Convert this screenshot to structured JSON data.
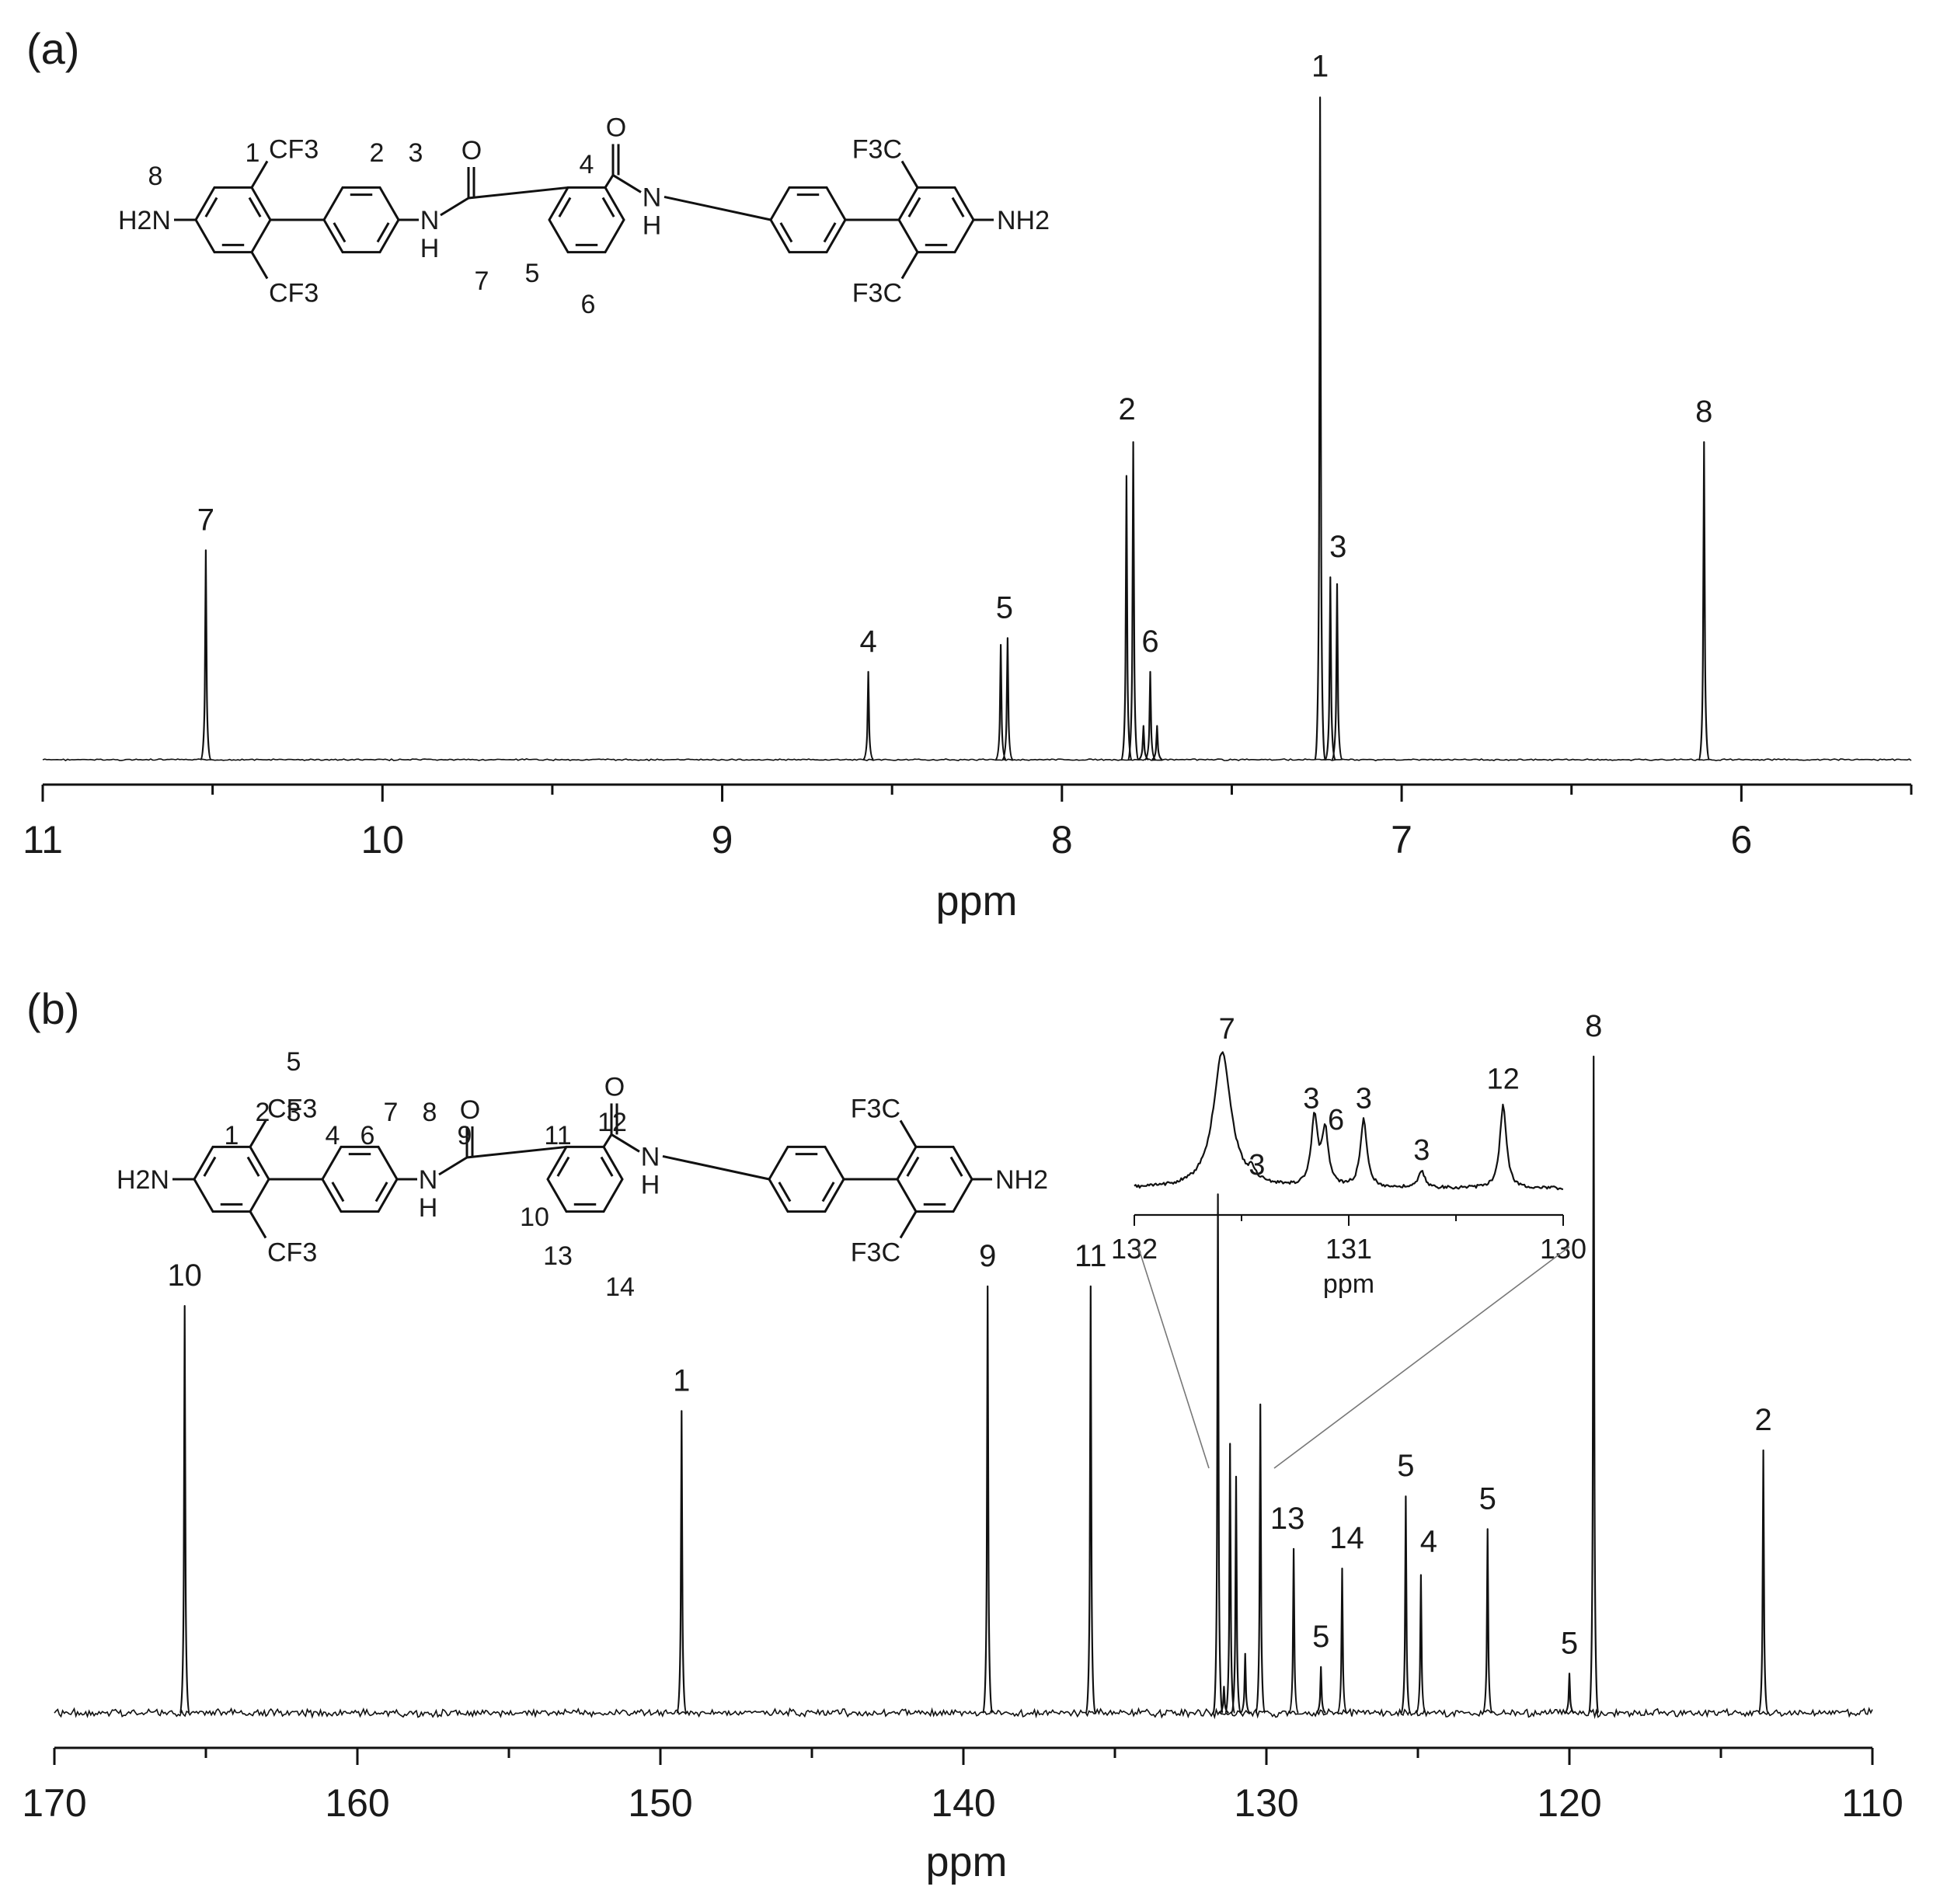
{
  "colors": {
    "line": "#111111",
    "background": "#ffffff"
  },
  "chart_data": [
    {
      "panel": "(a)",
      "type": "line",
      "xlabel": "ppm",
      "ylabel": "",
      "xlim": [
        11,
        5.5
      ],
      "x_reversed": true,
      "xticks": [
        11,
        10,
        9,
        8,
        7,
        6
      ],
      "xtick_labels": [
        "11",
        "10",
        "9",
        "8",
        "7",
        "6"
      ],
      "peaks": [
        {
          "ppm": 10.52,
          "height": 0.31,
          "label": "7"
        },
        {
          "ppm": 8.57,
          "height": 0.13,
          "label": "4"
        },
        {
          "ppm": 8.18,
          "height": 0.17,
          "label": ""
        },
        {
          "ppm": 8.16,
          "height": 0.18,
          "label": "5"
        },
        {
          "ppm": 7.81,
          "height": 0.42,
          "label": ""
        },
        {
          "ppm": 7.79,
          "height": 0.47,
          "label": "2"
        },
        {
          "ppm": 7.76,
          "height": 0.05,
          "label": ""
        },
        {
          "ppm": 7.74,
          "height": 0.13,
          "label": "6"
        },
        {
          "ppm": 7.72,
          "height": 0.05,
          "label": ""
        },
        {
          "ppm": 7.24,
          "height": 0.98,
          "label": "1"
        },
        {
          "ppm": 7.21,
          "height": 0.27,
          "label": "3"
        },
        {
          "ppm": 7.19,
          "height": 0.26,
          "label": ""
        },
        {
          "ppm": 6.11,
          "height": 0.47,
          "label": "8"
        }
      ],
      "structure_labels": {
        "atoms": {
          "h2n": "H2N",
          "nh2": "NH2",
          "nh": "N",
          "h": "H",
          "o": "O",
          "cf3": "CF3",
          "f3c": "F3C"
        },
        "positions": [
          "1",
          "2",
          "3",
          "4",
          "5",
          "6",
          "7",
          "8"
        ]
      }
    },
    {
      "panel": "(b)",
      "type": "line",
      "xlabel": "ppm",
      "ylabel": "",
      "xlim": [
        170,
        110
      ],
      "x_reversed": true,
      "xticks": [
        170,
        160,
        150,
        140,
        130,
        120,
        110
      ],
      "xtick_labels": [
        "170",
        "160",
        "150",
        "140",
        "130",
        "120",
        "110"
      ],
      "peaks": [
        {
          "ppm": 165.7,
          "height": 0.62,
          "label": "10"
        },
        {
          "ppm": 149.3,
          "height": 0.46,
          "label": "1"
        },
        {
          "ppm": 139.2,
          "height": 0.65,
          "label": "9"
        },
        {
          "ppm": 135.8,
          "height": 0.65,
          "label": "11"
        },
        {
          "ppm": 131.6,
          "height": 0.79,
          "label": ""
        },
        {
          "ppm": 131.4,
          "height": 0.04,
          "label": ""
        },
        {
          "ppm": 131.2,
          "height": 0.41,
          "label": ""
        },
        {
          "ppm": 131.0,
          "height": 0.36,
          "label": ""
        },
        {
          "ppm": 130.7,
          "height": 0.09,
          "label": ""
        },
        {
          "ppm": 130.2,
          "height": 0.47,
          "label": ""
        },
        {
          "ppm": 129.1,
          "height": 0.25,
          "label": "13"
        },
        {
          "ppm": 128.2,
          "height": 0.07,
          "label": "5"
        },
        {
          "ppm": 127.5,
          "height": 0.22,
          "label": "14"
        },
        {
          "ppm": 125.4,
          "height": 0.33,
          "label": "5"
        },
        {
          "ppm": 124.9,
          "height": 0.21,
          "label": "4"
        },
        {
          "ppm": 122.7,
          "height": 0.28,
          "label": "5"
        },
        {
          "ppm": 120.0,
          "height": 0.06,
          "label": "5"
        },
        {
          "ppm": 119.2,
          "height": 1.0,
          "label": "8"
        },
        {
          "ppm": 113.6,
          "height": 0.4,
          "label": "2"
        }
      ],
      "inset": {
        "type": "line",
        "xlabel": "ppm",
        "xlim": [
          132,
          130
        ],
        "xticks": [
          132,
          131,
          130
        ],
        "xtick_labels": [
          "132",
          "131",
          "130"
        ],
        "peaks": [
          {
            "ppm": 131.59,
            "height": 1.0,
            "label": "7"
          },
          {
            "ppm": 131.45,
            "height": 0.07,
            "label": "3"
          },
          {
            "ppm": 131.16,
            "height": 0.5,
            "label": "3"
          },
          {
            "ppm": 131.11,
            "height": 0.4,
            "label": "6"
          },
          {
            "ppm": 130.93,
            "height": 0.5,
            "label": "3"
          },
          {
            "ppm": 130.66,
            "height": 0.12,
            "label": "3"
          },
          {
            "ppm": 130.28,
            "height": 0.62,
            "label": "12"
          }
        ]
      },
      "structure_labels": {
        "atoms": {
          "h2n": "H2N",
          "nh2": "NH2",
          "nh": "N",
          "h": "H",
          "o": "O",
          "cf3": "CF3",
          "f3c": "F3C"
        },
        "positions": [
          "1",
          "2",
          "3",
          "4",
          "5",
          "6",
          "7",
          "8",
          "9",
          "10",
          "11",
          "12",
          "13",
          "14"
        ]
      }
    }
  ]
}
